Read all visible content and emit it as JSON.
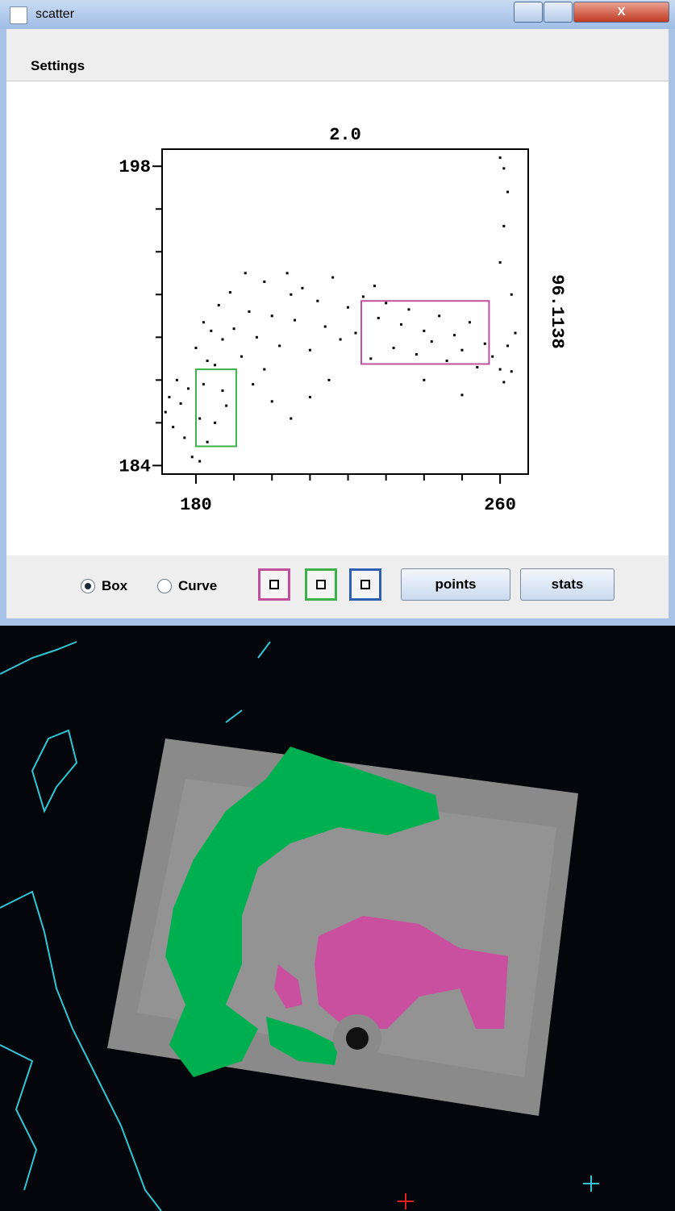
{
  "window": {
    "title": "scatter"
  },
  "menu": {
    "items": [
      "Settings"
    ]
  },
  "chart_data": {
    "type": "scatter",
    "title": "2.0",
    "right_label": "96.1138",
    "color": "#000000",
    "xlim": [
      171.1,
      267.4
    ],
    "ylim": [
      183.6,
      198.8
    ],
    "xticks": [
      180,
      260
    ],
    "yticks": [
      198,
      184
    ],
    "x_minor_ticks": [
      190,
      200,
      210,
      220,
      230,
      240,
      250
    ],
    "y_minor_ticks": [
      196,
      194,
      192,
      190,
      188,
      186
    ],
    "x": [
      172,
      173,
      174,
      175,
      176,
      177,
      178,
      179,
      180,
      181,
      182,
      183,
      184,
      185,
      186,
      187,
      188,
      189,
      181,
      183,
      185,
      182,
      187,
      190,
      192,
      194,
      196,
      198,
      200,
      202,
      204,
      206,
      208,
      210,
      212,
      214,
      216,
      218,
      220,
      222,
      224,
      226,
      228,
      230,
      232,
      234,
      236,
      238,
      240,
      242,
      244,
      246,
      248,
      250,
      252,
      254,
      256,
      258,
      260,
      262,
      264,
      261,
      263,
      260,
      261,
      262,
      261,
      260,
      263,
      195,
      200,
      205,
      210,
      215,
      198,
      240,
      250,
      193,
      227,
      205
    ],
    "y": [
      186.5,
      187.2,
      185.8,
      188.0,
      186.9,
      185.3,
      187.6,
      184.4,
      189.5,
      186.2,
      187.8,
      185.1,
      190.3,
      188.7,
      191.5,
      189.9,
      186.8,
      192.1,
      184.2,
      188.9,
      186.0,
      190.7,
      187.5,
      190.4,
      189.1,
      191.2,
      190.0,
      192.6,
      191.0,
      189.6,
      193.0,
      190.8,
      192.3,
      189.4,
      191.7,
      190.5,
      192.8,
      189.9,
      191.4,
      190.2,
      191.9,
      189.0,
      190.9,
      191.6,
      189.5,
      190.6,
      191.3,
      189.2,
      190.3,
      189.8,
      191.0,
      188.9,
      190.1,
      189.4,
      190.7,
      188.6,
      189.7,
      189.1,
      188.5,
      189.6,
      190.2,
      187.9,
      188.4,
      193.5,
      195.2,
      196.8,
      197.9,
      198.4,
      192.0,
      187.8,
      187.0,
      186.2,
      187.2,
      188.0,
      188.5,
      188.0,
      187.3,
      193.0,
      192.4,
      192.0
    ],
    "boxes": [
      {
        "color": "#c0509c",
        "x": [
          223.5,
          257.1
        ],
        "y": [
          188.75,
          191.7
        ]
      },
      {
        "color": "#3cb04a",
        "x": [
          180,
          190.6
        ],
        "y": [
          184.9,
          188.5
        ]
      }
    ]
  },
  "controls": {
    "radio": [
      {
        "label": "Box",
        "selected": true
      },
      {
        "label": "Curve",
        "selected": false
      }
    ],
    "color_buttons": [
      {
        "color": "#c0509c"
      },
      {
        "color": "#3cb04a"
      },
      {
        "color": "#2e5fb0"
      }
    ],
    "buttons": [
      "points",
      "stats"
    ]
  }
}
